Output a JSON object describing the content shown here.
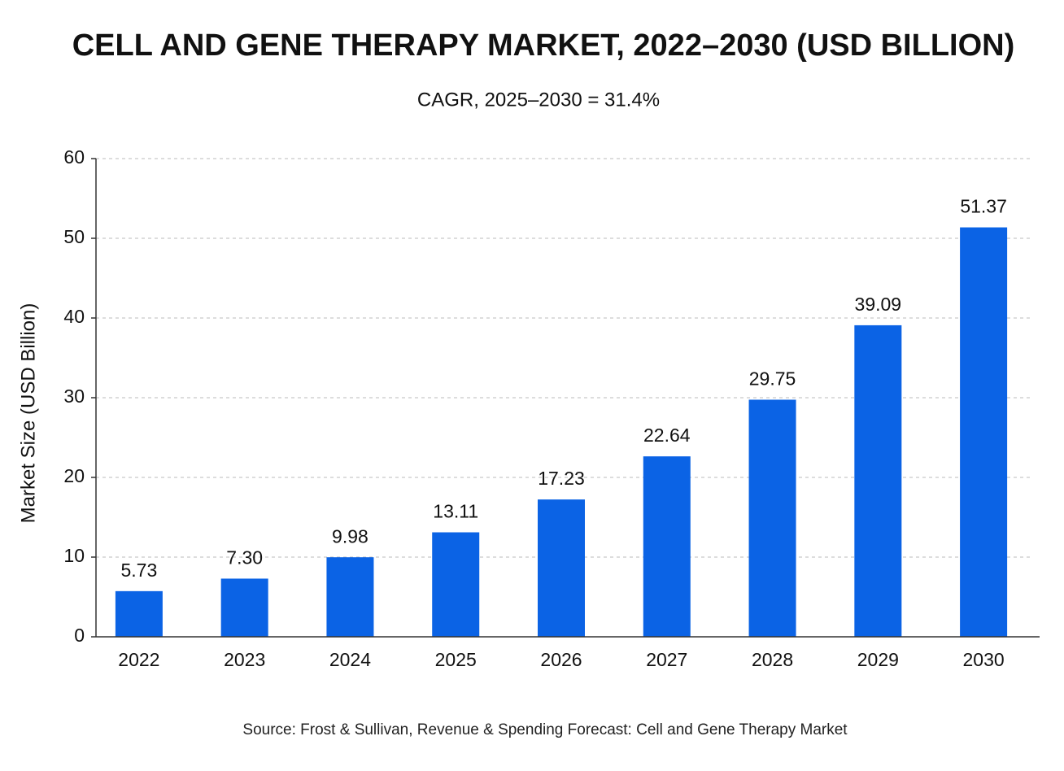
{
  "chart_data": {
    "type": "bar",
    "title": "CELL AND GENE THERAPY MARKET, 2022–2030 (USD BILLION)",
    "subtitle": "CAGR, 2025–2030 = 31.4%",
    "y_label": "Market Size (USD Billion)",
    "source": "Source: Frost & Sullivan, Revenue & Spending Forecast: Cell and Gene Therapy Market",
    "categories": [
      "2022",
      "2023",
      "2024",
      "2025",
      "2026",
      "2027",
      "2028",
      "2029",
      "2030"
    ],
    "values": [
      5.73,
      7.3,
      9.98,
      13.11,
      17.23,
      22.64,
      29.75,
      39.09,
      51.37
    ],
    "value_labels": [
      "5.73",
      "7.30",
      "9.98",
      "13.11",
      "17.23",
      "22.64",
      "29.75",
      "39.09",
      "51.37"
    ],
    "color": "#0b63e5",
    "ylim": [
      0,
      60
    ],
    "yticks": [
      0,
      10,
      20,
      30,
      40,
      50,
      60
    ],
    "grid": true
  }
}
